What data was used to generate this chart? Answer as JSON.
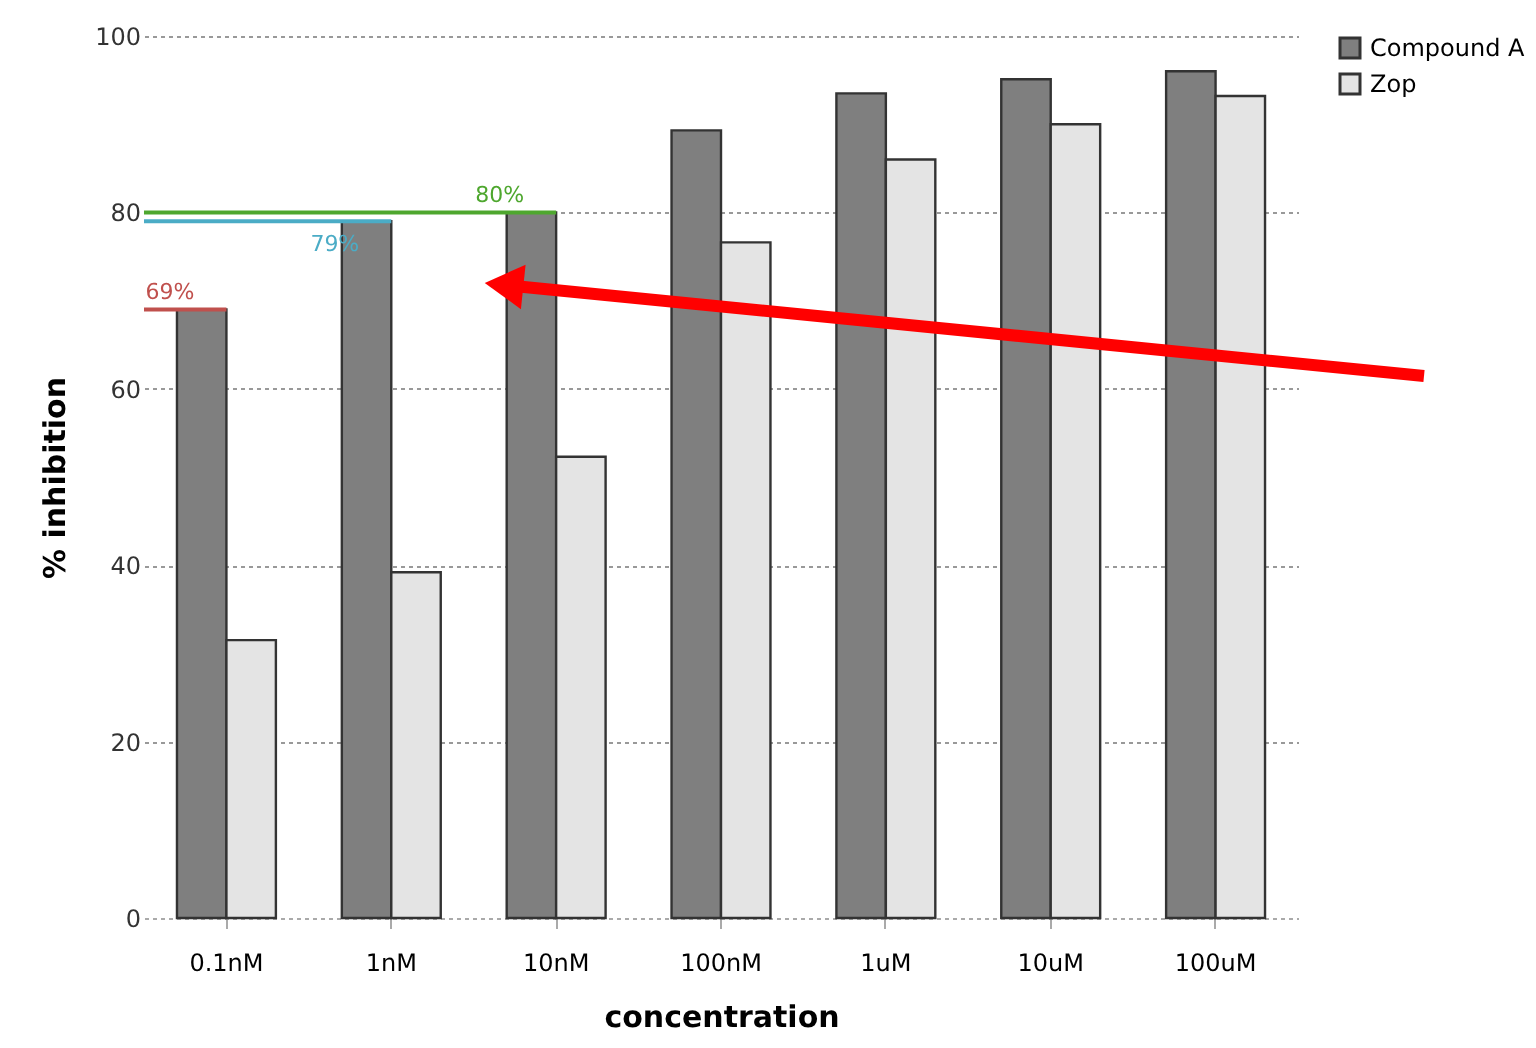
{
  "chart_data": {
    "type": "bar",
    "xlabel": "concentration",
    "ylabel": "% inhibition",
    "categories": [
      "0.1nM",
      "1nM",
      "10nM",
      "100nM",
      "1uM",
      "10uM",
      "100uM"
    ],
    "series": [
      {
        "name": "Compound A",
        "color": "#7f7f7f",
        "values": [
          69,
          79,
          80,
          89.3,
          93.5,
          95.1,
          96
        ]
      },
      {
        "name": "Zop",
        "color": "#e4e4e4",
        "values": [
          31.5,
          39.2,
          52.3,
          76.6,
          86,
          90,
          93.2
        ]
      }
    ],
    "ylim": [
      0,
      100
    ],
    "yticks": [
      0,
      20,
      40,
      60,
      80,
      100
    ],
    "grid": "y",
    "legend": "right",
    "ref_lines": [
      {
        "axis": "y",
        "value": 69,
        "label": "69%",
        "color": "#c0504d"
      },
      {
        "axis": "y",
        "value": 79,
        "label": "79%",
        "color": "#4bacc6"
      },
      {
        "axis": "y",
        "value": 80,
        "label": "80%",
        "color": "#4ea72e"
      }
    ]
  }
}
